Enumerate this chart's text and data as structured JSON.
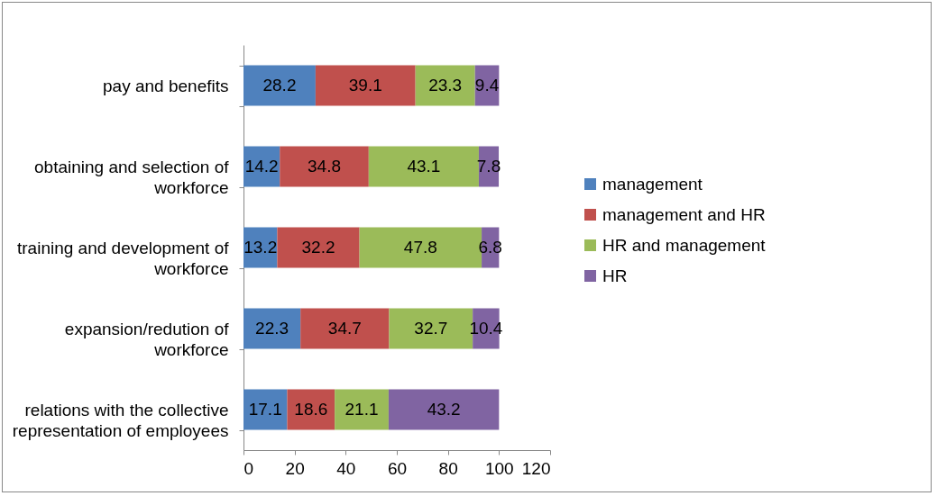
{
  "chart_data": {
    "type": "bar",
    "orientation": "horizontal",
    "stacked": true,
    "categories": [
      "pay and benefits",
      "obtaining and selection of workforce",
      "training and development of workforce",
      "expansion/redution of workforce",
      "relations with the collective representation of employees"
    ],
    "series": [
      {
        "name": "management",
        "color": "#4f81bd",
        "values": [
          28.2,
          14.2,
          13.2,
          22.3,
          17.1
        ]
      },
      {
        "name": "management and HR",
        "color": "#c0504d",
        "values": [
          39.1,
          34.8,
          32.2,
          34.7,
          18.6
        ]
      },
      {
        "name": "HR and management",
        "color": "#9bbb59",
        "values": [
          23.3,
          43.1,
          47.8,
          32.7,
          21.1
        ]
      },
      {
        "name": "HR",
        "color": "#8064a2",
        "values": [
          9.4,
          7.8,
          6.8,
          10.4,
          43.2
        ]
      }
    ],
    "xlim": [
      0,
      120
    ],
    "xticks": [
      0,
      20,
      40,
      60,
      80,
      100,
      120
    ],
    "data_labels": true,
    "legend": "right",
    "grid": false
  }
}
